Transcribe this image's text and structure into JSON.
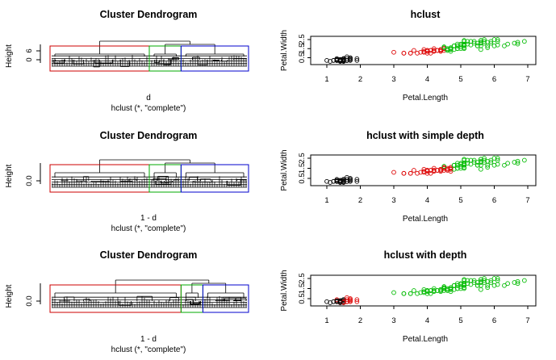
{
  "colors": {
    "cluster1": "#000000",
    "cluster2": "#dd0000",
    "cluster3": "#00bb00",
    "rect1": "#cc0000",
    "rect2": "#00aa00",
    "rect3": "#0000cc"
  },
  "chart_data": [
    {
      "type": "dendrogram",
      "title": "Cluster Dendrogram",
      "ylabel": "Height",
      "xlabel": "d",
      "sub": "hclust (*, \"complete\")",
      "yticks": [
        "0",
        "6"
      ],
      "ylim": [
        0,
        7
      ],
      "cluster_boxes": [
        {
          "cluster": 1,
          "color": "#cc0000",
          "share": 0.5
        },
        {
          "cluster": 2,
          "color": "#00aa00",
          "share": 0.16
        },
        {
          "cluster": 3,
          "color": "#0000cc",
          "share": 0.34
        }
      ]
    },
    {
      "type": "scatter",
      "title": "hclust",
      "xlabel": "Petal.Length",
      "ylabel": "Petal.Width",
      "xlim": [
        1,
        7
      ],
      "ylim": [
        0.1,
        2.5
      ],
      "xticks": [
        1,
        2,
        3,
        4,
        5,
        6,
        7
      ],
      "yticks": [
        "0.5",
        "1.5",
        "2.5"
      ],
      "mode": "hclust"
    },
    {
      "type": "dendrogram",
      "title": "Cluster Dendrogram",
      "ylabel": "Height",
      "xlabel": "1 - d",
      "sub": "hclust (*, \"complete\")",
      "yticks": [
        "0.0"
      ],
      "ylim": [
        0,
        1
      ],
      "cluster_boxes": [
        {
          "cluster": 1,
          "color": "#cc0000",
          "share": 0.5
        },
        {
          "cluster": 2,
          "color": "#00aa00",
          "share": 0.16
        },
        {
          "cluster": 3,
          "color": "#0000cc",
          "share": 0.34
        }
      ]
    },
    {
      "type": "scatter",
      "title": "hclust with simple depth",
      "xlabel": "Petal.Length",
      "ylabel": "Petal.Width",
      "xlim": [
        1,
        7
      ],
      "ylim": [
        0.1,
        2.5
      ],
      "xticks": [
        1,
        2,
        3,
        4,
        5,
        6,
        7
      ],
      "yticks": [
        "0.5",
        "1.5",
        "2.5"
      ],
      "mode": "simple"
    },
    {
      "type": "dendrogram",
      "title": "Cluster Dendrogram",
      "ylabel": "Height",
      "xlabel": "1 - d",
      "sub": "hclust (*, \"complete\")",
      "yticks": [
        "0.0"
      ],
      "ylim": [
        0,
        1
      ],
      "cluster_boxes": [
        {
          "cluster": 1,
          "color": "#cc0000",
          "share": 0.66
        },
        {
          "cluster": 2,
          "color": "#00aa00",
          "share": 0.11
        },
        {
          "cluster": 3,
          "color": "#0000cc",
          "share": 0.23
        }
      ]
    },
    {
      "type": "scatter",
      "title": "hclust with depth",
      "xlabel": "Petal.Length",
      "ylabel": "Petal.Width",
      "xlim": [
        1,
        7
      ],
      "ylim": [
        0.1,
        2.5
      ],
      "xticks": [
        1,
        2,
        3,
        4,
        5,
        6,
        7
      ],
      "yticks": [
        "0.5",
        "1.5",
        "2.5"
      ],
      "mode": "depth"
    }
  ],
  "iris": {
    "petal_length": [
      1.4,
      1.4,
      1.3,
      1.5,
      1.4,
      1.7,
      1.4,
      1.5,
      1.4,
      1.5,
      1.5,
      1.6,
      1.4,
      1.1,
      1.2,
      1.5,
      1.3,
      1.4,
      1.7,
      1.5,
      1.7,
      1.5,
      1.0,
      1.7,
      1.9,
      1.6,
      1.6,
      1.5,
      1.4,
      1.6,
      1.6,
      1.5,
      1.5,
      1.4,
      1.5,
      1.2,
      1.3,
      1.4,
      1.3,
      1.5,
      1.3,
      1.3,
      1.3,
      1.6,
      1.9,
      1.4,
      1.6,
      1.4,
      1.5,
      1.4,
      4.7,
      4.5,
      4.9,
      4.0,
      4.6,
      4.5,
      4.7,
      3.3,
      4.6,
      3.9,
      3.5,
      4.2,
      4.0,
      4.7,
      3.6,
      4.4,
      4.5,
      4.1,
      4.5,
      3.9,
      4.8,
      4.0,
      4.9,
      4.7,
      4.3,
      4.4,
      4.8,
      5.0,
      4.5,
      3.5,
      3.8,
      3.7,
      3.9,
      5.1,
      4.5,
      4.5,
      4.7,
      4.4,
      4.1,
      4.0,
      4.4,
      4.6,
      4.0,
      3.3,
      4.2,
      4.2,
      4.2,
      4.3,
      3.0,
      4.1,
      6.0,
      5.1,
      5.9,
      5.6,
      5.8,
      6.6,
      4.5,
      6.3,
      5.8,
      6.1,
      5.1,
      5.3,
      5.5,
      5.0,
      5.1,
      5.3,
      5.5,
      6.7,
      6.9,
      5.0,
      5.7,
      4.9,
      6.7,
      4.9,
      5.7,
      6.0,
      4.8,
      4.9,
      5.6,
      5.8,
      6.1,
      6.4,
      5.6,
      5.1,
      5.6,
      6.1,
      5.6,
      5.5,
      4.8,
      5.4,
      5.6,
      5.1,
      5.1,
      5.9,
      5.7,
      5.2,
      5.0,
      5.2,
      5.4,
      5.1
    ],
    "petal_width": [
      0.2,
      0.2,
      0.2,
      0.2,
      0.2,
      0.4,
      0.3,
      0.2,
      0.2,
      0.1,
      0.2,
      0.2,
      0.1,
      0.1,
      0.2,
      0.4,
      0.4,
      0.3,
      0.3,
      0.3,
      0.2,
      0.4,
      0.2,
      0.5,
      0.2,
      0.2,
      0.4,
      0.2,
      0.2,
      0.2,
      0.2,
      0.4,
      0.1,
      0.2,
      0.2,
      0.2,
      0.2,
      0.1,
      0.2,
      0.2,
      0.3,
      0.3,
      0.2,
      0.6,
      0.4,
      0.3,
      0.2,
      0.2,
      0.2,
      0.2,
      1.4,
      1.5,
      1.5,
      1.3,
      1.5,
      1.3,
      1.6,
      1.0,
      1.3,
      1.4,
      1.0,
      1.5,
      1.0,
      1.4,
      1.3,
      1.4,
      1.5,
      1.0,
      1.5,
      1.1,
      1.8,
      1.3,
      1.5,
      1.2,
      1.3,
      1.4,
      1.4,
      1.7,
      1.5,
      1.0,
      1.1,
      1.0,
      1.2,
      1.6,
      1.5,
      1.6,
      1.5,
      1.3,
      1.3,
      1.3,
      1.2,
      1.4,
      1.2,
      1.0,
      1.3,
      1.2,
      1.3,
      1.3,
      1.1,
      1.3,
      2.5,
      1.9,
      2.1,
      1.8,
      2.2,
      2.1,
      1.7,
      1.8,
      1.8,
      2.5,
      2.0,
      1.9,
      2.1,
      2.0,
      2.4,
      2.3,
      1.8,
      2.2,
      2.3,
      1.5,
      2.3,
      2.0,
      2.0,
      1.8,
      2.1,
      1.8,
      1.8,
      1.8,
      2.1,
      1.6,
      1.9,
      2.0,
      2.2,
      1.5,
      1.4,
      2.3,
      2.4,
      1.8,
      1.8,
      2.1,
      2.4,
      2.3,
      1.9,
      2.3,
      2.5,
      2.3,
      1.9,
      2.0,
      2.3,
      1.8
    ]
  }
}
